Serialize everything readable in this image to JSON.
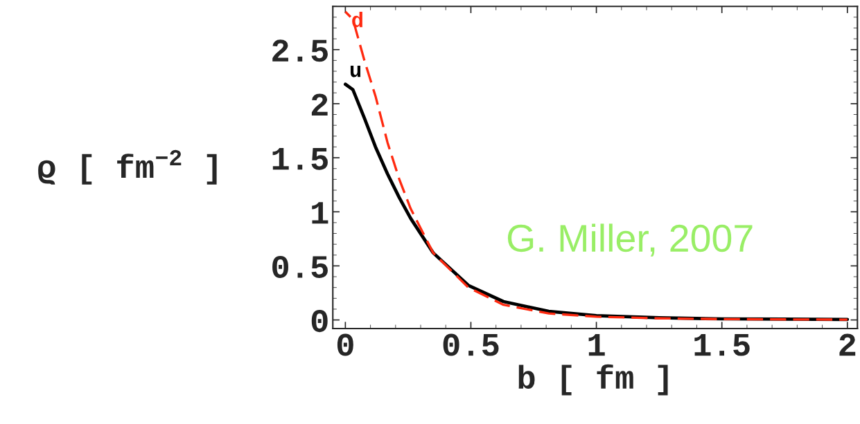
{
  "chart_data": {
    "type": "line",
    "xlabel": "b [ fm ]",
    "ylabel": "ϱ [ fm$^{−2}$ ]",
    "xlim": [
      -0.05,
      2.04
    ],
    "ylim": [
      -0.08,
      2.9
    ],
    "xticks": [
      0,
      0.5,
      1,
      1.5,
      2
    ],
    "yticks": [
      0,
      0.5,
      1,
      1.5,
      2,
      2.5
    ],
    "grid": false,
    "legend": false,
    "annotations": [
      "G. Miller, 2007"
    ],
    "series": [
      {
        "name": "u",
        "color": "#000000",
        "line_style": "solid",
        "x": [
          0,
          0.03,
          0.077,
          0.12,
          0.168,
          0.215,
          0.26,
          0.35,
          0.49,
          0.63,
          0.81,
          1.0,
          1.25,
          1.5,
          1.75,
          2.0
        ],
        "values": [
          2.18,
          2.13,
          1.86,
          1.6,
          1.35,
          1.13,
          0.94,
          0.62,
          0.32,
          0.17,
          0.08,
          0.04,
          0.02,
          0.01,
          0.007,
          0.005
        ]
      },
      {
        "name": "d",
        "color": "#ff2a10",
        "line_style": "dashed",
        "x": [
          0,
          0.03,
          0.077,
          0.12,
          0.168,
          0.215,
          0.26,
          0.35,
          0.49,
          0.63,
          0.81,
          1.0,
          1.25,
          1.5,
          1.75,
          2.0
        ],
        "values": [
          2.85,
          2.78,
          2.39,
          2.07,
          1.64,
          1.3,
          1.03,
          0.62,
          0.3,
          0.14,
          0.06,
          0.03,
          0.015,
          0.008,
          0.005,
          0.003
        ]
      }
    ]
  }
}
